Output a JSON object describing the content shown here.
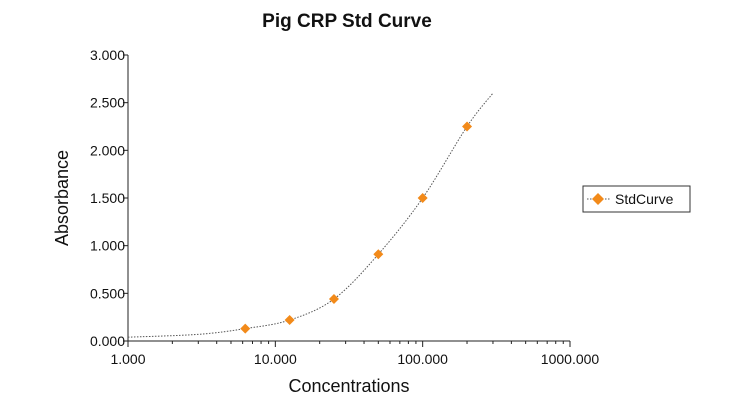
{
  "chart_data": {
    "type": "scatter",
    "title": "Pig CRP Std Curve",
    "xlabel": "Concentrations",
    "ylabel": "Absorbance",
    "x_scale": "log",
    "xlim": [
      1,
      1000
    ],
    "ylim": [
      0,
      3
    ],
    "x_ticks": [
      "1.000",
      "10.000",
      "100.000",
      "1000.000"
    ],
    "y_ticks": [
      "0.000",
      "0.500",
      "1.000",
      "1.500",
      "2.000",
      "2.500",
      "3.000"
    ],
    "grid": false,
    "legend_position": "right",
    "series": [
      {
        "name": "StdCurve",
        "color": "#f28a1a",
        "marker": "diamond",
        "x": [
          6.25,
          12.5,
          25,
          50,
          100,
          200
        ],
        "y": [
          0.13,
          0.22,
          0.44,
          0.91,
          1.5,
          2.25
        ]
      }
    ],
    "fit_curve": {
      "style": "dotted",
      "color": "#555555",
      "x": [
        1,
        3,
        6.25,
        12.5,
        25,
        50,
        100,
        200,
        300
      ],
      "y": [
        0.04,
        0.07,
        0.13,
        0.22,
        0.44,
        0.91,
        1.5,
        2.25,
        2.6
      ]
    }
  }
}
